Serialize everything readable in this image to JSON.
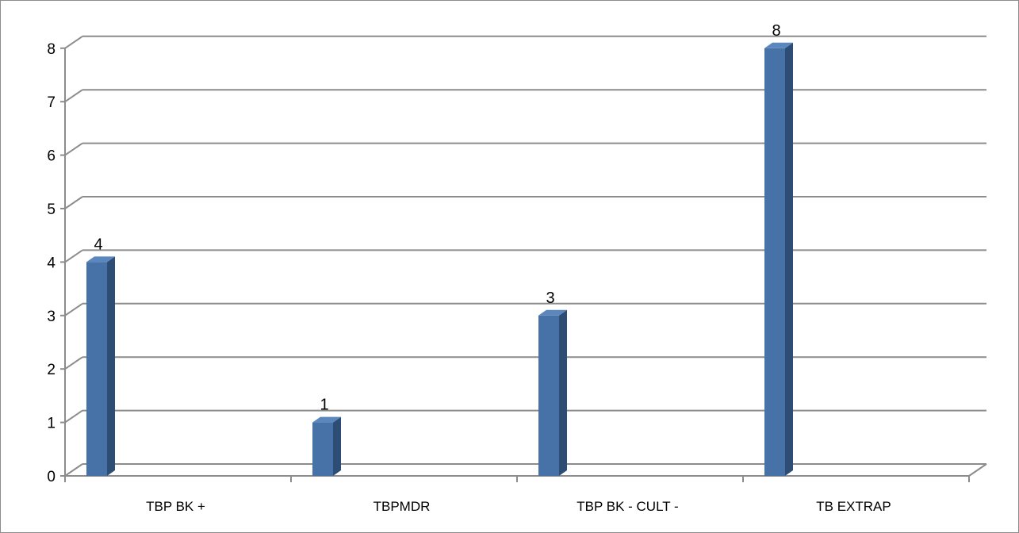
{
  "chart_data": {
    "type": "bar",
    "title": "",
    "xlabel": "",
    "ylabel": "",
    "categories": [
      "TBP BK +",
      "TBPMDR",
      "TBP BK - CULT -",
      "TB EXTRAP"
    ],
    "values": [
      4,
      1,
      3,
      8
    ],
    "data_labels": [
      "4",
      "1",
      "3",
      "8"
    ],
    "ylim": [
      0,
      8
    ],
    "yticks": [
      "0",
      "1",
      "2",
      "3",
      "4",
      "5",
      "6",
      "7",
      "8"
    ],
    "grid": true,
    "legend": "none",
    "style": "3d-column",
    "colors": {
      "bar": "#4672a8",
      "bar_side": "#2e4d75",
      "bar_top": "#5a87bd",
      "grid": "#8c8c8c"
    }
  }
}
